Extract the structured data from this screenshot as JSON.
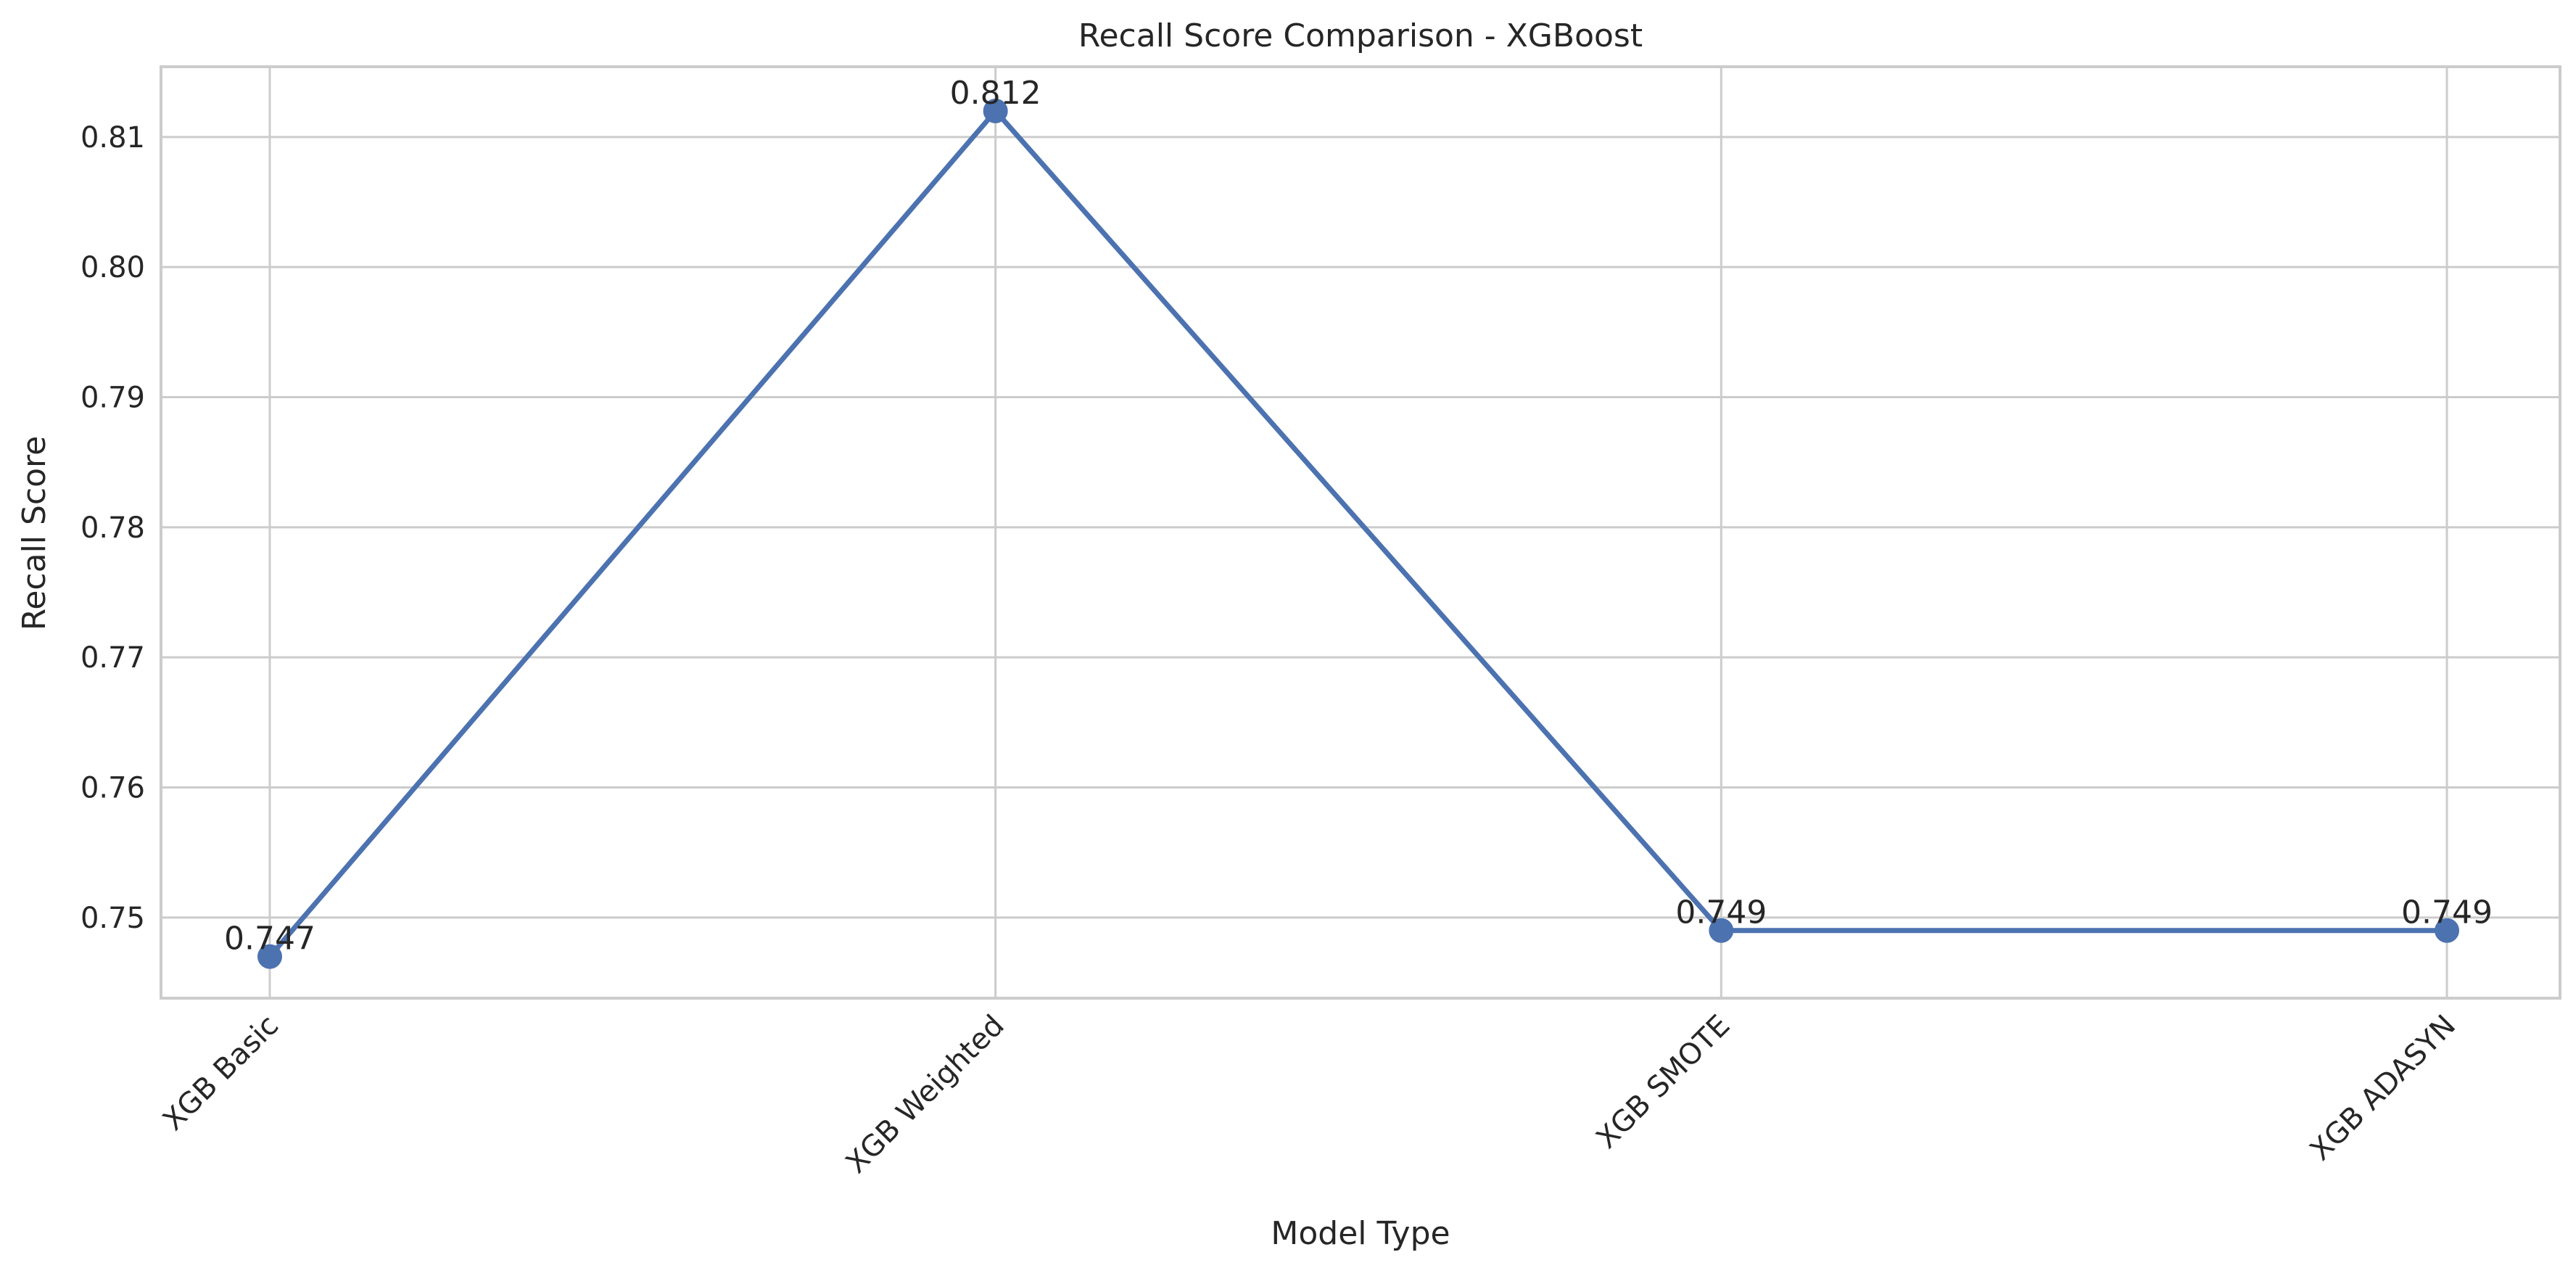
{
  "chart_data": {
    "type": "line",
    "title": "Recall Score Comparison - XGBoost",
    "xlabel": "Model Type",
    "ylabel": "Recall Score",
    "categories": [
      "XGB Basic",
      "XGB Weighted",
      "XGB SMOTE",
      "XGB ADASYN"
    ],
    "series": [
      {
        "values": [
          0.747,
          0.812,
          0.749,
          0.749
        ],
        "color": "#4c72b0"
      }
    ],
    "data_labels": [
      "0.747",
      "0.812",
      "0.749",
      "0.749"
    ],
    "yticks": [
      0.75,
      0.76,
      0.77,
      0.78,
      0.79,
      0.8,
      0.81
    ],
    "ytick_labels": [
      "0.75",
      "0.76",
      "0.77",
      "0.78",
      "0.79",
      "0.80",
      "0.81"
    ],
    "ylim": [
      0.7438,
      0.8154
    ],
    "grid": true,
    "xtick_rotation": -45,
    "colors": {
      "line": "#4c72b0",
      "grid": "#cccccc",
      "spine": "#cccccc",
      "text": "#262626"
    }
  }
}
